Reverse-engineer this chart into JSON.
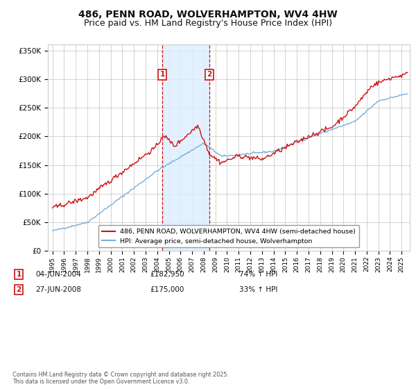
{
  "title": "486, PENN ROAD, WOLVERHAMPTON, WV4 4HW",
  "subtitle": "Price paid vs. HM Land Registry's House Price Index (HPI)",
  "legend_line1": "486, PENN ROAD, WOLVERHAMPTON, WV4 4HW (semi-detached house)",
  "legend_line2": "HPI: Average price, semi-detached house, Wolverhampton",
  "sale1_label": "1",
  "sale1_date": "04-JUN-2004",
  "sale1_price": "£182,950",
  "sale1_hpi": "74% ↑ HPI",
  "sale1_year": 2004.43,
  "sale2_label": "2",
  "sale2_date": "27-JUN-2008",
  "sale2_price": "£175,000",
  "sale2_hpi": "33% ↑ HPI",
  "sale2_year": 2008.49,
  "copyright": "Contains HM Land Registry data © Crown copyright and database right 2025.\nThis data is licensed under the Open Government Licence v3.0.",
  "ylim": [
    0,
    360000
  ],
  "yticks": [
    0,
    50000,
    100000,
    150000,
    200000,
    250000,
    300000,
    350000
  ],
  "hpi_color": "#7aaedc",
  "price_color": "#cc1111",
  "sale_marker_color": "#cc1111",
  "shade_color": "#ddeeff",
  "vline_color": "#cc1111",
  "grid_color": "#cccccc",
  "background_color": "#ffffff",
  "title_fontsize": 10,
  "subtitle_fontsize": 9,
  "xlim_left": 1994.6,
  "xlim_right": 2025.7
}
